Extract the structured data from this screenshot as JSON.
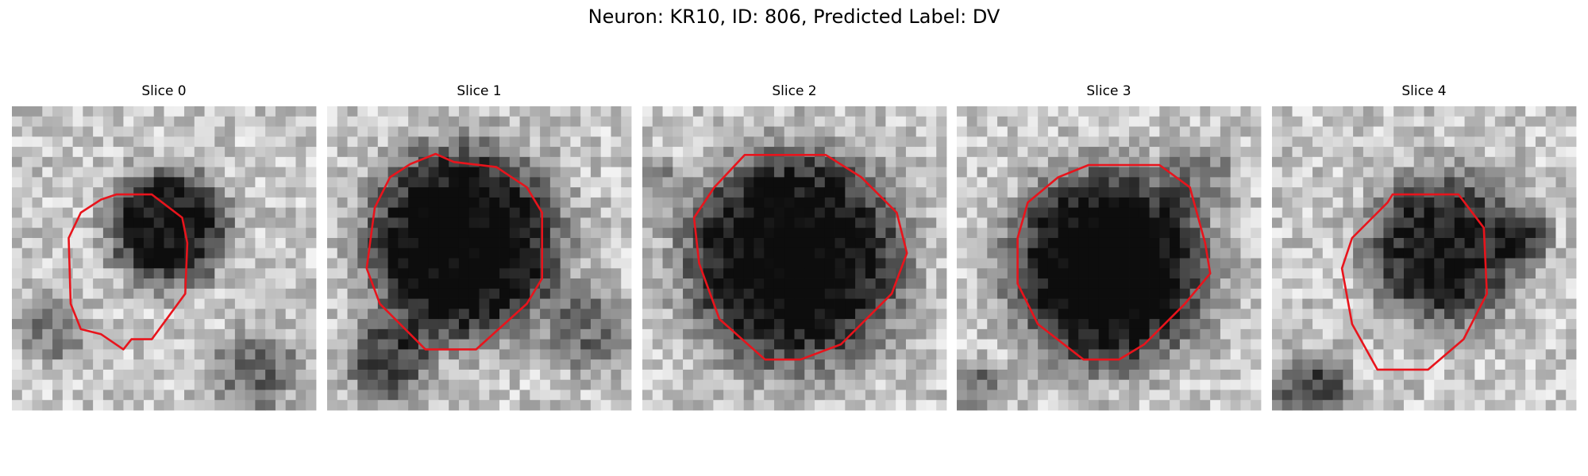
{
  "title": "Neuron: KR10, ID: 806, Predicted Label: DV",
  "panels": [
    {
      "title": "Slice 0"
    },
    {
      "title": "Slice 1"
    },
    {
      "title": "Slice 2"
    },
    {
      "title": "Slice 3"
    },
    {
      "title": "Slice 4"
    }
  ]
}
